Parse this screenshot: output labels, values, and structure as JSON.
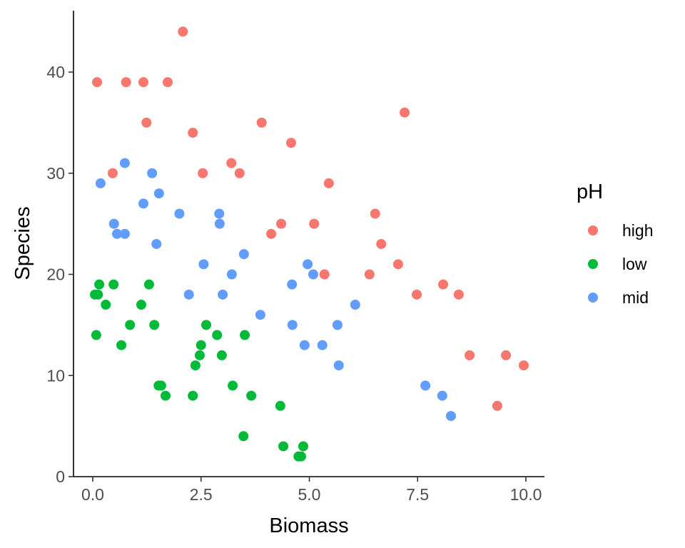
{
  "chart_data": {
    "type": "scatter",
    "title": "",
    "xlabel": "Biomass",
    "ylabel": "Species",
    "xlim": [
      -0.15,
      10.5
    ],
    "ylim": [
      -0.2,
      46
    ],
    "x_ticks": [
      0,
      2.5,
      5,
      7.5,
      10
    ],
    "x_tick_labels": [
      "0.0",
      "2.5",
      "5.0",
      "7.5",
      "10.0"
    ],
    "y_ticks": [
      0,
      10,
      20,
      30,
      40
    ],
    "y_tick_labels": [
      "0",
      "10",
      "20",
      "30",
      "40"
    ],
    "grid": false,
    "legend": {
      "title": "pH",
      "placement": "right"
    },
    "series": [
      {
        "name": "high",
        "color": "#F8766D",
        "points": [
          [
            0.1,
            39
          ],
          [
            0.46,
            30
          ],
          [
            0.77,
            39
          ],
          [
            1.17,
            39
          ],
          [
            1.24,
            35
          ],
          [
            1.73,
            39
          ],
          [
            2.08,
            44
          ],
          [
            2.31,
            34
          ],
          [
            2.54,
            30
          ],
          [
            3.2,
            31
          ],
          [
            3.39,
            30
          ],
          [
            3.9,
            35
          ],
          [
            4.12,
            24
          ],
          [
            4.35,
            25
          ],
          [
            4.58,
            33
          ],
          [
            5.11,
            25
          ],
          [
            5.35,
            20
          ],
          [
            5.45,
            29
          ],
          [
            6.39,
            20
          ],
          [
            6.52,
            26
          ],
          [
            6.66,
            23
          ],
          [
            7.05,
            21
          ],
          [
            7.2,
            36
          ],
          [
            7.48,
            18
          ],
          [
            8.09,
            19
          ],
          [
            8.45,
            18
          ],
          [
            8.7,
            12
          ],
          [
            9.34,
            7
          ],
          [
            9.54,
            12
          ],
          [
            9.95,
            11
          ]
        ]
      },
      {
        "name": "low",
        "color": "#00BA38",
        "points": [
          [
            0.05,
            18
          ],
          [
            0.12,
            18
          ],
          [
            0.15,
            19
          ],
          [
            0.08,
            14
          ],
          [
            0.3,
            17
          ],
          [
            0.48,
            19
          ],
          [
            0.66,
            13
          ],
          [
            0.86,
            15
          ],
          [
            1.12,
            17
          ],
          [
            1.3,
            19
          ],
          [
            1.42,
            15
          ],
          [
            1.52,
            9
          ],
          [
            1.58,
            9
          ],
          [
            1.68,
            8
          ],
          [
            2.31,
            8
          ],
          [
            2.37,
            11
          ],
          [
            2.47,
            12
          ],
          [
            2.5,
            13
          ],
          [
            2.62,
            15
          ],
          [
            2.87,
            14
          ],
          [
            2.98,
            12
          ],
          [
            3.23,
            9
          ],
          [
            3.48,
            4
          ],
          [
            3.51,
            14
          ],
          [
            3.66,
            8
          ],
          [
            4.33,
            7
          ],
          [
            4.4,
            3
          ],
          [
            4.75,
            2
          ],
          [
            4.81,
            2
          ],
          [
            4.86,
            3
          ]
        ]
      },
      {
        "name": "mid",
        "color": "#619CFF",
        "points": [
          [
            0.18,
            29
          ],
          [
            0.49,
            25
          ],
          [
            0.56,
            24
          ],
          [
            0.74,
            31
          ],
          [
            0.74,
            24
          ],
          [
            1.17,
            27
          ],
          [
            1.37,
            30
          ],
          [
            1.47,
            23
          ],
          [
            1.53,
            28
          ],
          [
            2.0,
            26
          ],
          [
            2.22,
            18
          ],
          [
            2.56,
            21
          ],
          [
            2.92,
            26
          ],
          [
            2.93,
            25
          ],
          [
            3.0,
            18
          ],
          [
            3.21,
            20
          ],
          [
            3.49,
            22
          ],
          [
            3.87,
            16
          ],
          [
            4.6,
            19
          ],
          [
            4.61,
            15
          ],
          [
            4.89,
            13
          ],
          [
            4.96,
            21
          ],
          [
            5.09,
            20
          ],
          [
            5.3,
            13
          ],
          [
            5.65,
            15
          ],
          [
            5.68,
            11
          ],
          [
            6.06,
            17
          ],
          [
            7.68,
            9
          ],
          [
            8.07,
            8
          ],
          [
            8.27,
            6
          ]
        ]
      }
    ]
  }
}
